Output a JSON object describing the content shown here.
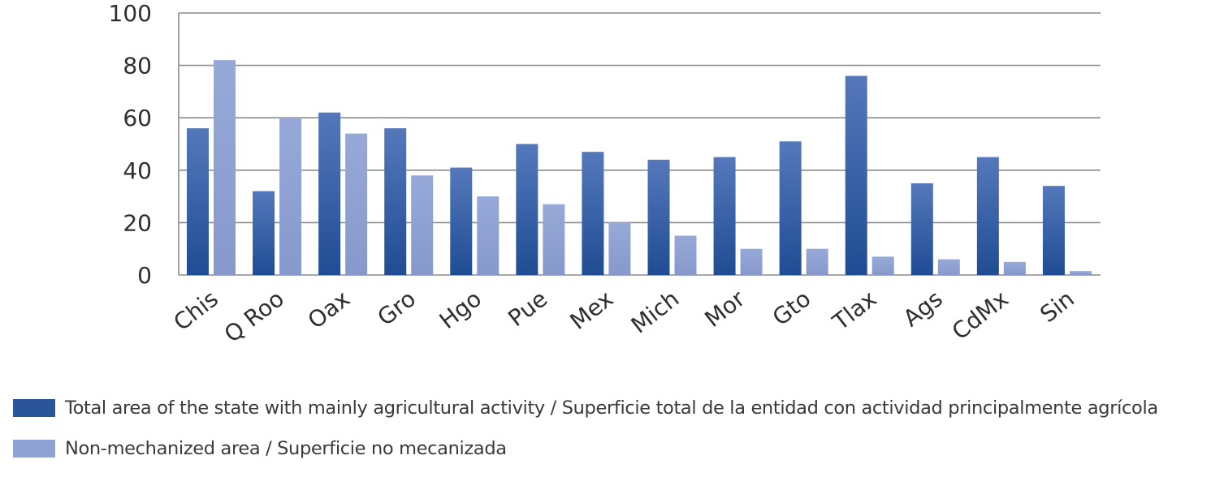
{
  "chart_data": {
    "type": "bar",
    "title": "",
    "xlabel": "",
    "ylabel": "",
    "ylim": [
      0,
      100
    ],
    "yticks": [
      0,
      20,
      40,
      60,
      80,
      100
    ],
    "grid": true,
    "legend_position": "bottom-left",
    "categories": [
      "Chis",
      "Q Roo",
      "Oax",
      "Gro",
      "Hgo",
      "Pue",
      "Mex",
      "Mich",
      "Mor",
      "Gto",
      "Tlax",
      "Ags",
      "CdMx",
      "Sin"
    ],
    "series": [
      {
        "name": "Total area of the state with mainly agricultural activity / Superficie total de la entidad con actividad principalmente agrícola",
        "color": "#2f5597",
        "values": [
          56,
          32,
          62,
          56,
          41,
          50,
          47,
          44,
          45,
          51,
          76,
          35,
          45,
          34
        ]
      },
      {
        "name": "Non-mechanized area / Superficie no mecanizada",
        "color": "#8fa2d4",
        "values": [
          82,
          60,
          54,
          38,
          30,
          27,
          20,
          15,
          10,
          10,
          7,
          6,
          5,
          1.5
        ]
      }
    ]
  },
  "colors": {
    "series1_light": "#4f74b6",
    "series1_dark": "#1f4a91",
    "series2": "#8fa2d4",
    "grid": "#8c8c8c",
    "text": "#3a3a3a"
  }
}
